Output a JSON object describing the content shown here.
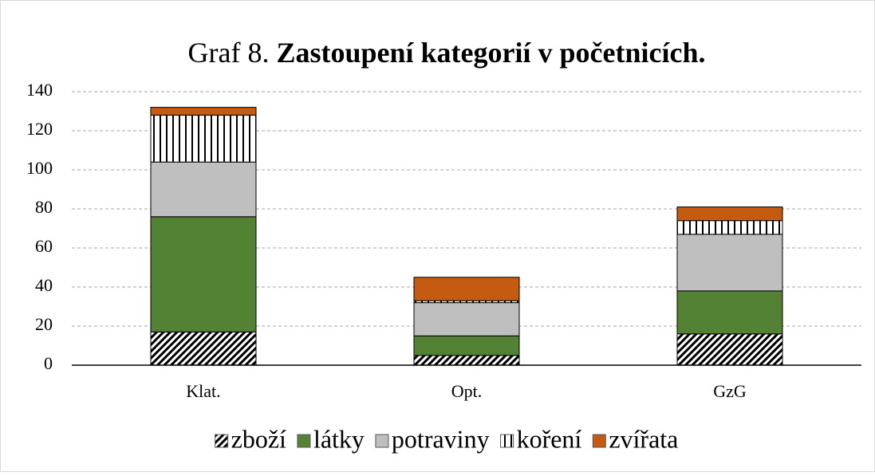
{
  "chart_data": {
    "type": "stacked-bar",
    "title": {
      "number": "Graf 8.",
      "text": "Zastoupení kategorií v početnicích."
    },
    "categories": [
      "Klat.",
      "Opt.",
      "GzG"
    ],
    "series": [
      {
        "name": "zboží",
        "color": "#000000",
        "pattern": "diagonal-hatch",
        "values": [
          17,
          5,
          16
        ]
      },
      {
        "name": "látky",
        "color": "#548235",
        "values": [
          59,
          10,
          22
        ]
      },
      {
        "name": "potraviny",
        "color": "#bfbfbf",
        "values": [
          28,
          17,
          29
        ]
      },
      {
        "name": "koření",
        "color": "#000000",
        "pattern": "vertical-stripes",
        "values": [
          24,
          1,
          7
        ]
      },
      {
        "name": "zvířata",
        "color": "#c55a11",
        "values": [
          4,
          12,
          7
        ]
      }
    ],
    "ylim": [
      0,
      140
    ],
    "yticks": [
      0,
      20,
      40,
      60,
      80,
      100,
      120,
      140
    ],
    "grid": true,
    "legend": "bottom"
  }
}
